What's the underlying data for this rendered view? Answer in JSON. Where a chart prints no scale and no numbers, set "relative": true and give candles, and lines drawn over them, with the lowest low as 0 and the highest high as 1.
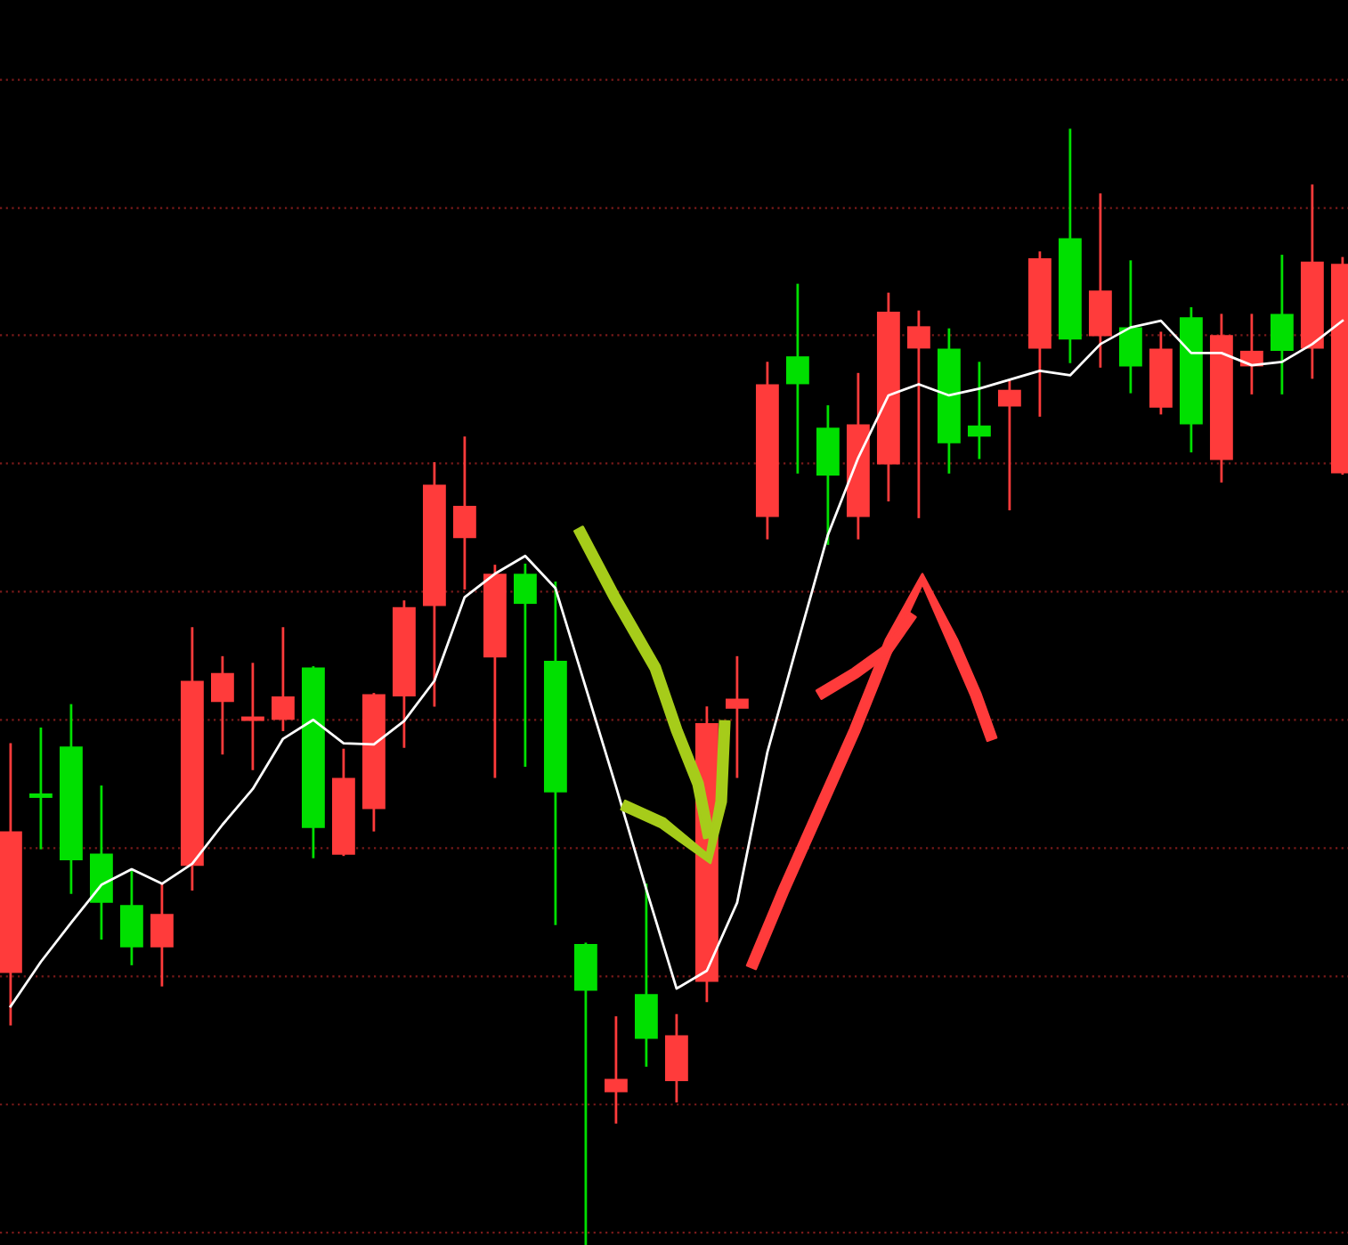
{
  "chart_data": {
    "type": "candlestick",
    "relative": true,
    "ref_lines": [
      {
        "axis": "y",
        "value": 1.045,
        "color": "#7a1a1a",
        "line_style": "dotted"
      },
      {
        "axis": "y",
        "value": 0.93,
        "color": "#7a1a1a",
        "line_style": "dotted"
      },
      {
        "axis": "y",
        "value": 0.816,
        "color": "#7a1a1a",
        "line_style": "dotted"
      },
      {
        "axis": "y",
        "value": 0.701,
        "color": "#7a1a1a",
        "line_style": "dotted"
      },
      {
        "axis": "y",
        "value": 0.586,
        "color": "#7a1a1a",
        "line_style": "dotted"
      },
      {
        "axis": "y",
        "value": 0.471,
        "color": "#7a1a1a",
        "line_style": "dotted"
      },
      {
        "axis": "y",
        "value": 0.356,
        "color": "#7a1a1a",
        "line_style": "dotted"
      },
      {
        "axis": "y",
        "value": 0.241,
        "color": "#7a1a1a",
        "line_style": "dotted"
      },
      {
        "axis": "y",
        "value": 0.126,
        "color": "#7a1a1a",
        "line_style": "dotted"
      },
      {
        "axis": "y",
        "value": 0.011,
        "color": "#7a1a1a",
        "line_style": "dotted"
      }
    ],
    "categories": [
      null,
      null,
      null,
      null,
      null,
      null,
      null,
      null,
      null,
      null,
      null,
      null,
      null,
      null,
      null,
      null,
      null,
      null,
      null,
      null,
      null,
      null,
      null,
      null,
      null,
      null,
      null,
      null,
      null,
      null,
      null,
      null,
      null,
      null,
      null,
      null,
      null,
      null,
      null,
      null,
      null,
      null,
      null,
      null,
      null
    ],
    "ohlc": [
      [
        0.244,
        0.449,
        0.198,
        0.371
      ],
      [
        0.404,
        0.463,
        0.356,
        0.401
      ],
      [
        0.447,
        0.484,
        0.316,
        0.345
      ],
      [
        0.351,
        0.411,
        0.275,
        0.307
      ],
      [
        0.305,
        0.335,
        0.252,
        0.267
      ],
      [
        0.267,
        0.323,
        0.233,
        0.297
      ],
      [
        0.34,
        0.553,
        0.319,
        0.506
      ],
      [
        0.487,
        0.527,
        0.441,
        0.513
      ],
      [
        0.47,
        0.521,
        0.427,
        0.473
      ],
      [
        0.471,
        0.553,
        0.462,
        0.492
      ],
      [
        0.518,
        0.518,
        0.348,
        0.374
      ],
      [
        0.35,
        0.444,
        0.35,
        0.419
      ],
      [
        0.391,
        0.494,
        0.372,
        0.494
      ],
      [
        0.492,
        0.577,
        0.447,
        0.572
      ],
      [
        0.573,
        0.701,
        0.484,
        0.682
      ],
      [
        0.634,
        0.724,
        0.589,
        0.663
      ],
      [
        0.527,
        0.609,
        0.42,
        0.602
      ],
      [
        0.602,
        0.61,
        0.43,
        0.575
      ],
      [
        0.524,
        0.594,
        0.288,
        0.406
      ],
      [
        0.27,
        0.27,
        0,
        0.228
      ],
      [
        0.137,
        0.204,
        0.11,
        0.149
      ],
      [
        0.225,
        0.323,
        0.161,
        0.185
      ],
      [
        0.147,
        0.206,
        0.129,
        0.188
      ],
      [
        0.236,
        0.482,
        0.219,
        0.468
      ],
      [
        0.481,
        0.527,
        0.42,
        0.49
      ],
      [
        0.653,
        0.791,
        0.634,
        0.772
      ],
      [
        0.797,
        0.861,
        0.693,
        0.772
      ],
      [
        0.733,
        0.752,
        0.629,
        0.69
      ],
      [
        0.653,
        0.781,
        0.634,
        0.736
      ],
      [
        0.7,
        0.853,
        0.668,
        0.837
      ],
      [
        0.804,
        0.837,
        0.653,
        0.824
      ],
      [
        0.804,
        0.821,
        0.693,
        0.719
      ],
      [
        0.735,
        0.791,
        0.706,
        0.725
      ],
      [
        0.752,
        0.775,
        0.66,
        0.767
      ],
      [
        0.804,
        0.89,
        0.744,
        0.885
      ],
      [
        0.903,
        1,
        0.792,
        0.812
      ],
      [
        0.815,
        0.942,
        0.788,
        0.856
      ],
      [
        0.823,
        0.882,
        0.765,
        0.788
      ],
      [
        0.751,
        0.818,
        0.746,
        0.804
      ],
      [
        0.832,
        0.84,
        0.712,
        0.736
      ],
      [
        0.704,
        0.834,
        0.685,
        0.816
      ],
      [
        0.788,
        0.834,
        0.764,
        0.802
      ],
      [
        0.835,
        0.887,
        0.764,
        0.802
      ],
      [
        0.804,
        0.95,
        0.778,
        0.882
      ],
      [
        0.692,
        0.885,
        0.692,
        0.88
      ]
    ],
    "colors": [
      "#ff3b3b",
      "#00e000",
      "#00e000",
      "#00e000",
      "#00e000",
      "#ff3b3b",
      "#ff3b3b",
      "#ff3b3b",
      "#ff3b3b",
      "#ff3b3b",
      "#00e000",
      "#ff3b3b",
      "#ff3b3b",
      "#ff3b3b",
      "#ff3b3b",
      "#ff3b3b",
      "#ff3b3b",
      "#00e000",
      "#00e000",
      "#00e000",
      "#ff3b3b",
      "#00e000",
      "#ff3b3b",
      "#ff3b3b",
      "#ff3b3b",
      "#ff3b3b",
      "#00e000",
      "#00e000",
      "#ff3b3b",
      "#ff3b3b",
      "#ff3b3b",
      "#00e000",
      "#00e000",
      "#ff3b3b",
      "#ff3b3b",
      "#00e000",
      "#ff3b3b",
      "#00e000",
      "#ff3b3b",
      "#00e000",
      "#ff3b3b",
      "#ff3b3b",
      "#00e000",
      "#ff3b3b",
      "#ff3b3b"
    ],
    "series": [
      {
        "type": "line",
        "color": "#ffffff",
        "values": [
          0.214,
          0.254,
          0.289,
          0.323,
          0.337,
          0.324,
          0.342,
          0.377,
          0.409,
          0.454,
          0.471,
          0.45,
          0.449,
          0.47,
          0.506,
          0.581,
          0.602,
          0.618,
          0.589,
          0.5,
          0.411,
          0.319,
          0.23,
          0.246,
          0.307,
          0.442,
          0.54,
          0.637,
          0.706,
          0.762,
          0.772,
          0.762,
          0.768,
          0.776,
          0.784,
          0.78,
          0.808,
          0.823,
          0.829,
          0.8,
          0.8,
          0.789,
          0.792,
          0.808,
          0.829
        ]
      }
    ]
  }
}
